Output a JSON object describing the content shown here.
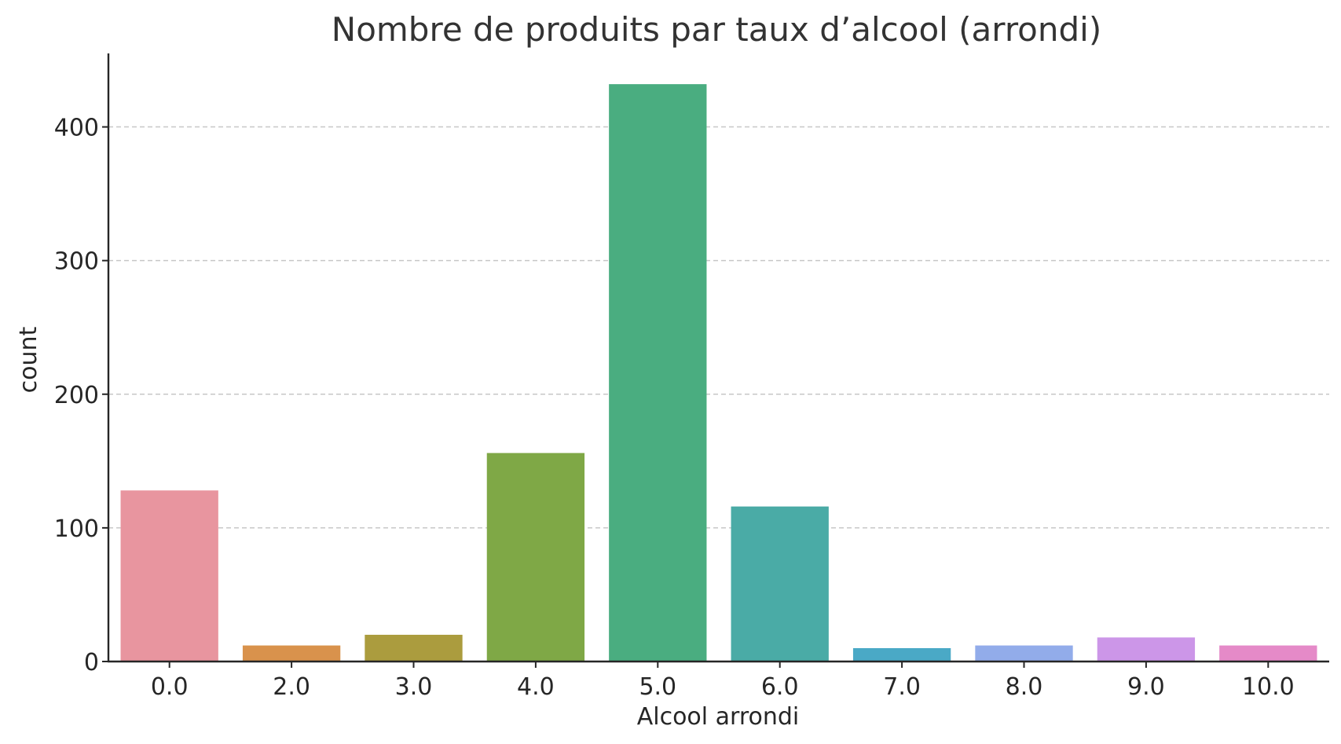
{
  "chart_data": {
    "type": "bar",
    "title": "Nombre de produits par taux d’alcool (arrondi)",
    "xlabel": "Alcool arrondi",
    "ylabel": "count",
    "categories": [
      "0.0",
      "2.0",
      "3.0",
      "4.0",
      "5.0",
      "6.0",
      "7.0",
      "8.0",
      "9.0",
      "10.0"
    ],
    "values": [
      128,
      12,
      20,
      156,
      432,
      116,
      10,
      12,
      18,
      12
    ],
    "colors": [
      "#e8959f",
      "#d9924c",
      "#ab9c3e",
      "#7fa846",
      "#4aad80",
      "#4aaba6",
      "#4aa9c6",
      "#92acea",
      "#cc96e8",
      "#e58ac8"
    ],
    "yticks": [
      0,
      100,
      200,
      300,
      400
    ],
    "ylim": [
      0,
      455
    ],
    "grid": "horizontal dashed"
  }
}
